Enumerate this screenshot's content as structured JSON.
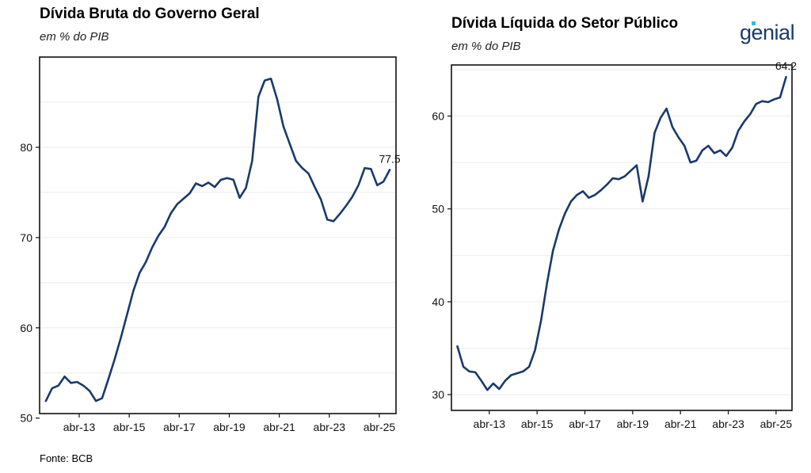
{
  "source": "Fonte: BCB",
  "logo": {
    "text": "genial",
    "icon": "genial-logo-icon",
    "accent_color": "#29c0e6",
    "color": "#1a3a6b"
  },
  "chart_data": [
    {
      "type": "line",
      "title": "Dívida Bruta do Governo Geral",
      "subtitle": "em % do PIB",
      "color": "#1a3a6b",
      "x_ticks": [
        "abr-13",
        "abr-15",
        "abr-17",
        "abr-19",
        "abr-21",
        "abr-23",
        "abr-25"
      ],
      "y_ticks": [
        "50",
        "60",
        "70",
        "80"
      ],
      "ylim": [
        50.5,
        90
      ],
      "xlim": [
        "2011-09",
        "2025-12"
      ],
      "grid": "horizontal-minor",
      "annotation": "77.5",
      "series": [
        {
          "x": [
            "2011-12",
            "2012-03",
            "2012-06",
            "2012-09",
            "2012-12",
            "2013-03",
            "2013-06",
            "2013-09",
            "2013-12",
            "2014-03",
            "2014-06",
            "2014-09",
            "2014-12",
            "2015-03",
            "2015-06",
            "2015-09",
            "2015-12",
            "2016-03",
            "2016-06",
            "2016-09",
            "2016-12",
            "2017-03",
            "2017-06",
            "2017-09",
            "2017-12",
            "2018-03",
            "2018-06",
            "2018-09",
            "2018-12",
            "2019-03",
            "2019-06",
            "2019-09",
            "2019-12",
            "2020-03",
            "2020-06",
            "2020-09",
            "2020-12",
            "2021-03",
            "2021-06",
            "2021-09",
            "2021-12",
            "2022-03",
            "2022-06",
            "2022-09",
            "2022-12",
            "2023-03",
            "2023-06",
            "2023-09",
            "2023-12",
            "2024-03",
            "2024-06",
            "2024-09",
            "2024-12",
            "2025-03",
            "2025-06",
            "2025-09"
          ],
          "values": [
            51.9,
            53.3,
            53.6,
            54.6,
            53.9,
            54.0,
            53.6,
            53.0,
            51.9,
            52.2,
            54.3,
            56.5,
            58.9,
            61.5,
            64.1,
            66.1,
            67.3,
            68.9,
            70.2,
            71.2,
            72.7,
            73.7,
            74.3,
            74.9,
            76.0,
            75.7,
            76.1,
            75.6,
            76.4,
            76.6,
            76.4,
            74.4,
            75.5,
            78.5,
            85.6,
            87.4,
            87.6,
            85.3,
            82.3,
            80.4,
            78.5,
            77.7,
            77.1,
            75.6,
            74.2,
            72.0,
            71.8,
            72.6,
            73.5,
            74.5,
            75.8,
            77.7,
            77.6,
            75.8,
            76.2,
            77.5
          ]
        }
      ]
    },
    {
      "type": "line",
      "title": "Dívida Líquida do Setor Público",
      "subtitle": "em % do PIB",
      "color": "#1a3a6b",
      "x_ticks": [
        "abr-13",
        "abr-15",
        "abr-17",
        "abr-19",
        "abr-21",
        "abr-23",
        "abr-25"
      ],
      "y_ticks": [
        "30",
        "40",
        "50",
        "60"
      ],
      "ylim": [
        28.3,
        65.5
      ],
      "xlim": [
        "2011-09",
        "2025-12"
      ],
      "grid": "horizontal-minor",
      "annotation": "64.2",
      "series": [
        {
          "x": [
            "2011-12",
            "2012-03",
            "2012-06",
            "2012-09",
            "2012-12",
            "2013-03",
            "2013-06",
            "2013-09",
            "2013-12",
            "2014-03",
            "2014-06",
            "2014-09",
            "2014-12",
            "2015-03",
            "2015-06",
            "2015-09",
            "2015-12",
            "2016-03",
            "2016-06",
            "2016-09",
            "2016-12",
            "2017-03",
            "2017-06",
            "2017-09",
            "2017-12",
            "2018-03",
            "2018-06",
            "2018-09",
            "2018-12",
            "2019-03",
            "2019-06",
            "2019-09",
            "2019-12",
            "2020-03",
            "2020-06",
            "2020-09",
            "2020-12",
            "2021-03",
            "2021-06",
            "2021-09",
            "2021-12",
            "2022-03",
            "2022-06",
            "2022-09",
            "2022-12",
            "2023-03",
            "2023-06",
            "2023-09",
            "2023-12",
            "2024-03",
            "2024-06",
            "2024-09",
            "2024-12",
            "2025-03",
            "2025-06",
            "2025-09"
          ],
          "values": [
            35.2,
            33.0,
            32.5,
            32.4,
            31.5,
            30.5,
            31.2,
            30.6,
            31.5,
            32.1,
            32.3,
            32.5,
            33.0,
            34.8,
            38.0,
            42.0,
            45.5,
            47.8,
            49.5,
            50.8,
            51.5,
            51.9,
            51.2,
            51.5,
            52.0,
            52.6,
            53.3,
            53.2,
            53.5,
            54.1,
            54.7,
            50.8,
            53.5,
            58.2,
            59.8,
            60.8,
            58.8,
            57.7,
            56.8,
            55.0,
            55.2,
            56.3,
            56.8,
            56.0,
            56.3,
            55.7,
            56.6,
            58.4,
            59.4,
            60.2,
            61.3,
            61.6,
            61.5,
            61.8,
            62.0,
            64.2
          ]
        }
      ]
    }
  ]
}
